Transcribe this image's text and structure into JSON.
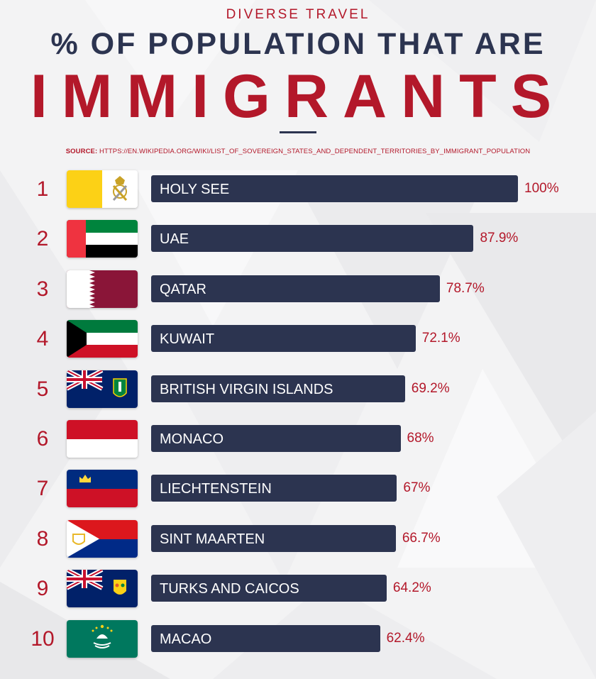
{
  "header": {
    "brand": "DIVERSE TRAVEL",
    "title_line1": "% OF POPULATION THAT ARE",
    "title_line2": "IMMIGRANTS",
    "source_label": "SOURCE:",
    "source_url": "HTTPS://EN.WIKIPEDIA.ORG/WIKI/LIST_OF_SOVEREIGN_STATES_AND_DEPENDENT_TERRITORIES_BY_IMMIGRANT_POPULATION"
  },
  "colors": {
    "accent_red": "#b3182a",
    "bar_navy": "#2c3450",
    "background": "#f4f4f5"
  },
  "chart_data": {
    "type": "bar",
    "orientation": "horizontal",
    "title": "% OF POPULATION THAT ARE IMMIGRANTS",
    "xlim": [
      0,
      100
    ],
    "grid": false,
    "legend": "none",
    "categories": [
      "HOLY SEE",
      "UAE",
      "QATAR",
      "KUWAIT",
      "BRITISH VIRGIN ISLANDS",
      "MONACO",
      "LIECHTENSTEIN",
      "SINT MAARTEN",
      "TURKS AND CAICOS",
      "MACAO"
    ],
    "values": [
      100,
      87.9,
      78.7,
      72.1,
      69.2,
      68,
      67,
      66.7,
      64.2,
      62.4
    ],
    "value_labels": [
      "100%",
      "87.9%",
      "78.7%",
      "72.1%",
      "69.2%",
      "68%",
      "67%",
      "66.7%",
      "64.2%",
      "62.4%"
    ],
    "ranks": [
      "1",
      "2",
      "3",
      "4",
      "5",
      "6",
      "7",
      "8",
      "9",
      "10"
    ],
    "flag_icons": [
      "holy-see-flag-icon",
      "uae-flag-icon",
      "qatar-flag-icon",
      "kuwait-flag-icon",
      "british-virgin-islands-flag-icon",
      "monaco-flag-icon",
      "liechtenstein-flag-icon",
      "sint-maarten-flag-icon",
      "turks-and-caicos-flag-icon",
      "macao-flag-icon"
    ]
  }
}
